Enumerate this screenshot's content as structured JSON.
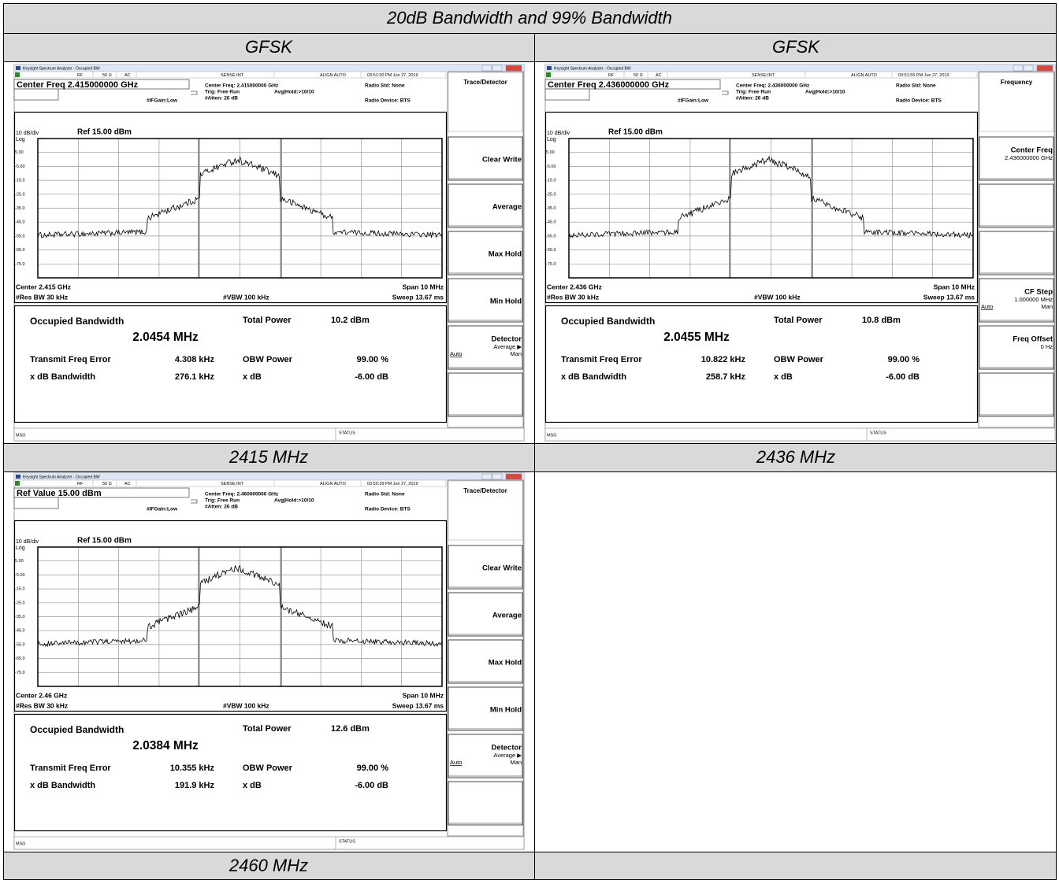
{
  "title": "20dB Bandwidth and 99% Bandwidth",
  "column_headers": [
    "GFSK",
    "GFSK"
  ],
  "captions": [
    "2415 MHz",
    "2436 MHz",
    "2460 MHz"
  ],
  "screenshots": [
    {
      "window_title": "Keysight Spectrum Analyzer - Occupied BW",
      "status_bar": [
        "RF",
        "50 Ω",
        "AC",
        "SENSE:INT",
        "ALIGN AUTO",
        "03:51:30 PM Jun 27, 2019"
      ],
      "active_field": "Center Freq 2.415000000 GHz",
      "settings": [
        "Center Freq: 2.415000000 GHz",
        "Trig: Free Run",
        "Avg|Hold:>10/10",
        "#Atten: 26 dB",
        "#IFGain:Low",
        "Radio Std: None",
        "Radio Device: BTS"
      ],
      "scale": "10 dB/div",
      "ref": "Ref 15.00 dBm",
      "log": "Log",
      "y_labels": [
        "5.00",
        "-5.00",
        "-15.0",
        "-25.0",
        "-35.0",
        "-45.0",
        "-55.0",
        "-65.0",
        "-75.0"
      ],
      "center": "Center 2.415 GHz",
      "span": "Span 10 MHz",
      "rbw": "#Res BW 30 kHz",
      "vbw": "#VBW 100 kHz",
      "sweep": "Sweep 13.67 ms",
      "results": {
        "obw_label": "Occupied Bandwidth",
        "obw": "2.0454 MHz",
        "total_power_label": "Total Power",
        "total_power": "10.2 dBm",
        "freq_error_label": "Transmit Freq Error",
        "freq_error": "4.308 kHz",
        "obw_power_label": "OBW Power",
        "obw_power": "99.00 %",
        "xdb_bw_label": "x dB Bandwidth",
        "xdb_bw": "276.1 kHz",
        "xdb_label": "x dB",
        "xdb": "-6.00 dB"
      },
      "msg": "MSG",
      "status": "STATUS",
      "menu_title": "Trace/Detector",
      "softkeys": [
        {
          "label": "Clear Write"
        },
        {
          "label": "Average"
        },
        {
          "label": "Max Hold"
        },
        {
          "label": "Min Hold"
        },
        {
          "label": "Detector",
          "sub": "Average ▶",
          "auto": "Auto",
          "man": "Man"
        }
      ]
    },
    {
      "window_title": "Keysight Spectrum Analyzer - Occupied BW",
      "status_bar": [
        "RF",
        "50 Ω",
        "AC",
        "SENSE:INT",
        "ALIGN AUTO",
        "03:51:55 PM Jun 27, 2019"
      ],
      "active_field": "Center Freq 2.436000000 GHz",
      "settings": [
        "Center Freq: 2.436000000 GHz",
        "Trig: Free Run",
        "Avg|Hold:>10/10",
        "#Atten: 26 dB",
        "#IFGain:Low",
        "Radio Std: None",
        "Radio Device: BTS"
      ],
      "scale": "10 dB/div",
      "ref": "Ref 15.00 dBm",
      "log": "Log",
      "y_labels": [
        "5.00",
        "-5.00",
        "-15.0",
        "-25.0",
        "-35.0",
        "-45.0",
        "-55.0",
        "-65.0",
        "-75.0"
      ],
      "center": "Center 2.436 GHz",
      "span": "Span 10 MHz",
      "rbw": "#Res BW 30 kHz",
      "vbw": "#VBW 100 kHz",
      "sweep": "Sweep 13.67 ms",
      "results": {
        "obw_label": "Occupied Bandwidth",
        "obw": "2.0455 MHz",
        "total_power_label": "Total Power",
        "total_power": "10.8 dBm",
        "freq_error_label": "Transmit Freq Error",
        "freq_error": "10.822 kHz",
        "obw_power_label": "OBW Power",
        "obw_power": "99.00 %",
        "xdb_bw_label": "x dB Bandwidth",
        "xdb_bw": "258.7 kHz",
        "xdb_label": "x dB",
        "xdb": "-6.00 dB"
      },
      "msg": "MSG",
      "status": "STATUS",
      "menu_title": "Frequency",
      "softkeys": [
        {
          "label": "Center Freq",
          "sub": "2.436000000 GHz"
        },
        null,
        null,
        {
          "label": "CF Step",
          "sub": "1.000000 MHz",
          "auto": "Auto",
          "man": "Man"
        },
        {
          "label": "Freq Offset",
          "sub": "0 Hz"
        }
      ]
    },
    {
      "window_title": "Keysight Spectrum Analyzer - Occupied BW",
      "status_bar": [
        "RF",
        "50 Ω",
        "AC",
        "SENSE:INT",
        "ALIGN AUTO",
        "03:50:39 PM Jun 27, 2019"
      ],
      "active_field": "Ref Value 15.00 dBm",
      "settings": [
        "Center Freq: 2.460000000 GHz",
        "Trig: Free Run",
        "Avg|Hold:>10/10",
        "#Atten: 26 dB",
        "#IFGain:Low",
        "Radio Std: None",
        "Radio Device: BTS"
      ],
      "scale": "10 dB/div",
      "ref": "Ref 15.00 dBm",
      "log": "Log",
      "y_labels": [
        "5.00",
        "-5.00",
        "-15.0",
        "-25.0",
        "-35.0",
        "-45.0",
        "-55.0",
        "-65.0",
        "-75.0"
      ],
      "center": "Center 2.46 GHz",
      "span": "Span 10 MHz",
      "rbw": "#Res BW 30 kHz",
      "vbw": "#VBW 100 kHz",
      "sweep": "Sweep 13.67 ms",
      "results": {
        "obw_label": "Occupied Bandwidth",
        "obw": "2.0384 MHz",
        "total_power_label": "Total Power",
        "total_power": "12.6 dBm",
        "freq_error_label": "Transmit Freq Error",
        "freq_error": "10.355 kHz",
        "obw_power_label": "OBW Power",
        "obw_power": "99.00 %",
        "xdb_bw_label": "x dB Bandwidth",
        "xdb_bw": "191.9 kHz",
        "xdb_label": "x dB",
        "xdb": "-6.00 dB"
      },
      "msg": "MSG",
      "status": "STATUS",
      "menu_title": "Trace/Detector",
      "softkeys": [
        {
          "label": "Clear Write"
        },
        {
          "label": "Average"
        },
        {
          "label": "Max Hold"
        },
        {
          "label": "Min Hold"
        },
        {
          "label": "Detector",
          "sub": "Average ▶",
          "auto": "Auto",
          "man": "Man"
        }
      ]
    }
  ]
}
